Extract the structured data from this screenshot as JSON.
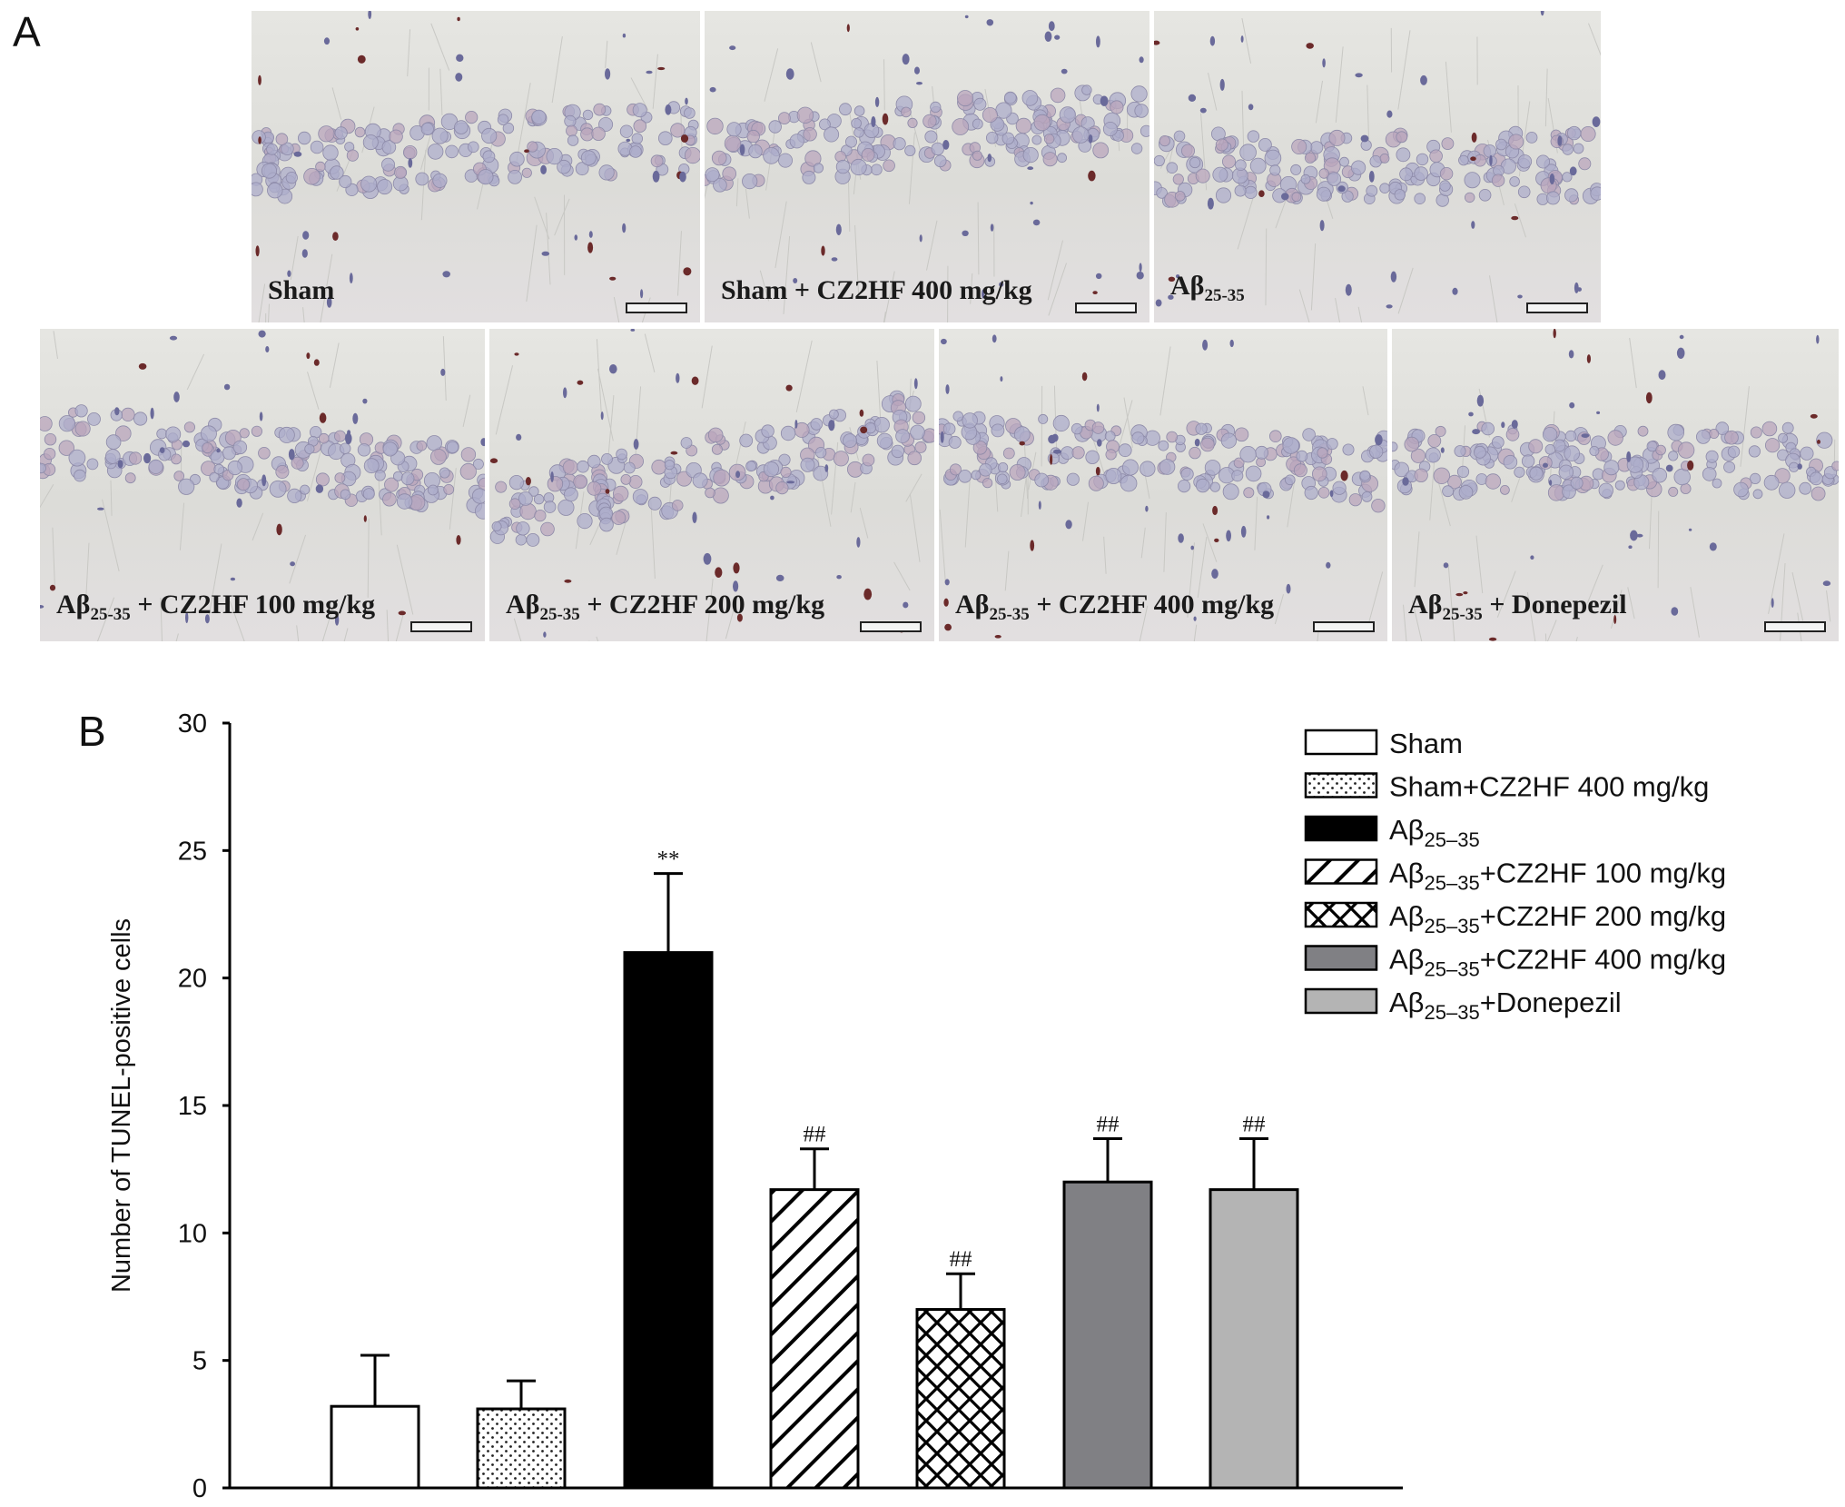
{
  "panel_a": {
    "letter": "A",
    "images": [
      {
        "label": "Sham",
        "sub": "",
        "suffix": ""
      },
      {
        "label": "Sham + CZ2HF 400 mg/kg",
        "sub": "",
        "suffix": ""
      },
      {
        "label": "Aβ",
        "sub": "25-35",
        "suffix": ""
      },
      {
        "label": "Aβ",
        "sub": "25-35",
        "suffix": " + CZ2HF 100 mg/kg"
      },
      {
        "label": "Aβ",
        "sub": "25-35",
        "suffix": " + CZ2HF 200 mg/kg"
      },
      {
        "label": "Aβ",
        "sub": "25-35",
        "suffix": " + CZ2HF 400 mg/kg"
      },
      {
        "label": "Aβ",
        "sub": "25-35",
        "suffix": " + Donepezil"
      }
    ]
  },
  "panel_b": {
    "letter": "B"
  },
  "chart_data": {
    "type": "bar",
    "ylabel": "Number of TUNEL-positive cells",
    "ylim": [
      0,
      30
    ],
    "yticks": [
      0,
      5,
      10,
      15,
      20,
      25,
      30
    ],
    "series": [
      {
        "name": "Sham",
        "value": 3.2,
        "error": 2.0,
        "annotation": "",
        "pattern": "empty"
      },
      {
        "name": "Sham+CZ2HF 400 mg/kg",
        "value": 3.1,
        "error": 1.1,
        "annotation": "",
        "pattern": "dots"
      },
      {
        "name": "Aβ25–35",
        "value": 21.0,
        "error": 3.1,
        "annotation": "**",
        "pattern": "solid-black"
      },
      {
        "name": "Aβ25–35+CZ2HF 100 mg/kg",
        "value": 11.7,
        "error": 1.6,
        "annotation": "##",
        "pattern": "diagonal"
      },
      {
        "name": "Aβ25–35+CZ2HF 200 mg/kg",
        "value": 7.0,
        "error": 1.4,
        "annotation": "##",
        "pattern": "crosshatch"
      },
      {
        "name": "Aβ25–35+CZ2HF 400 mg/kg",
        "value": 12.0,
        "error": 1.7,
        "annotation": "##",
        "pattern": "dark-gray"
      },
      {
        "name": "Aβ25–35+Donepezil",
        "value": 11.7,
        "error": 2.0,
        "annotation": "##",
        "pattern": "light-gray"
      }
    ],
    "legend": [
      {
        "prefix": "Sham",
        "sub": "",
        "suffix": ""
      },
      {
        "prefix": "Sham+CZ2HF 400 mg/kg",
        "sub": "",
        "suffix": ""
      },
      {
        "prefix": "Aβ",
        "sub": "25–35",
        "suffix": ""
      },
      {
        "prefix": "Aβ",
        "sub": "25–35",
        "suffix": "+CZ2HF 100 mg/kg"
      },
      {
        "prefix": "Aβ",
        "sub": "25–35",
        "suffix": "+CZ2HF 200 mg/kg"
      },
      {
        "prefix": "Aβ",
        "sub": "25–35",
        "suffix": "+CZ2HF 400 mg/kg"
      },
      {
        "prefix": "Aβ",
        "sub": "25–35",
        "suffix": "+Donepezil"
      }
    ],
    "legend_position": "top-right",
    "colors": {
      "black": "#000000",
      "dark_gray": "#808084",
      "light_gray": "#b4b4b4",
      "white": "#ffffff"
    }
  }
}
